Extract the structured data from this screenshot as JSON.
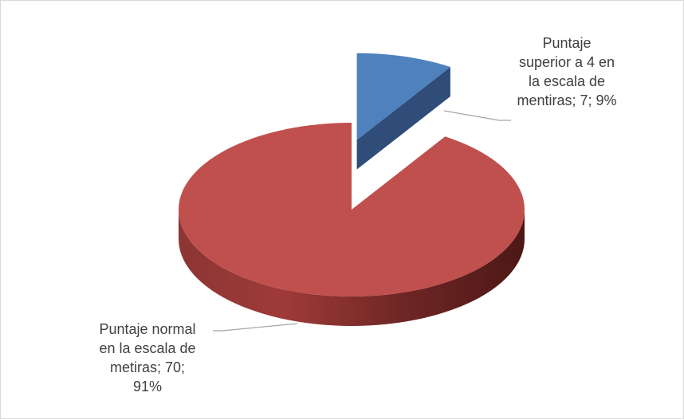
{
  "chart_data": {
    "type": "pie",
    "style": "3d-exploded",
    "title": "",
    "legend": "none",
    "slices": [
      {
        "label_lines": [
          "Puntaje",
          "superior a 4 en",
          "la escala de",
          "mentiras; 7; 9%"
        ],
        "value": 7,
        "percent": "9%",
        "color": "#4f81bd"
      },
      {
        "label_lines": [
          "Puntaje normal",
          "en la escala de",
          "metiras; 70;",
          "91%"
        ],
        "value": 70,
        "percent": "91%",
        "color": "#c0504d"
      }
    ]
  }
}
